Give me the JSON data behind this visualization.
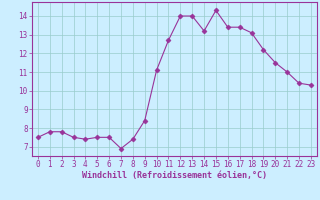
{
  "x": [
    0,
    1,
    2,
    3,
    4,
    5,
    6,
    7,
    8,
    9,
    10,
    11,
    12,
    13,
    14,
    15,
    16,
    17,
    18,
    19,
    20,
    21,
    22,
    23
  ],
  "y": [
    7.5,
    7.8,
    7.8,
    7.5,
    7.4,
    7.5,
    7.5,
    6.9,
    7.4,
    8.4,
    11.1,
    12.7,
    14.0,
    14.0,
    13.2,
    14.3,
    13.4,
    13.4,
    13.1,
    12.2,
    11.5,
    11.0,
    10.4,
    10.3
  ],
  "line_color": "#993399",
  "marker": "D",
  "marker_size": 2.5,
  "bg_color": "#cceeff",
  "grid_color": "#99cccc",
  "xlabel": "Windchill (Refroidissement éolien,°C)",
  "xlim": [
    -0.5,
    23.5
  ],
  "ylim": [
    6.5,
    14.75
  ],
  "yticks": [
    7,
    8,
    9,
    10,
    11,
    12,
    13,
    14
  ],
  "xticks": [
    0,
    1,
    2,
    3,
    4,
    5,
    6,
    7,
    8,
    9,
    10,
    11,
    12,
    13,
    14,
    15,
    16,
    17,
    18,
    19,
    20,
    21,
    22,
    23
  ],
  "tick_color": "#993399",
  "label_color": "#993399",
  "spine_color": "#993399",
  "axis_bg": "#cceeff"
}
